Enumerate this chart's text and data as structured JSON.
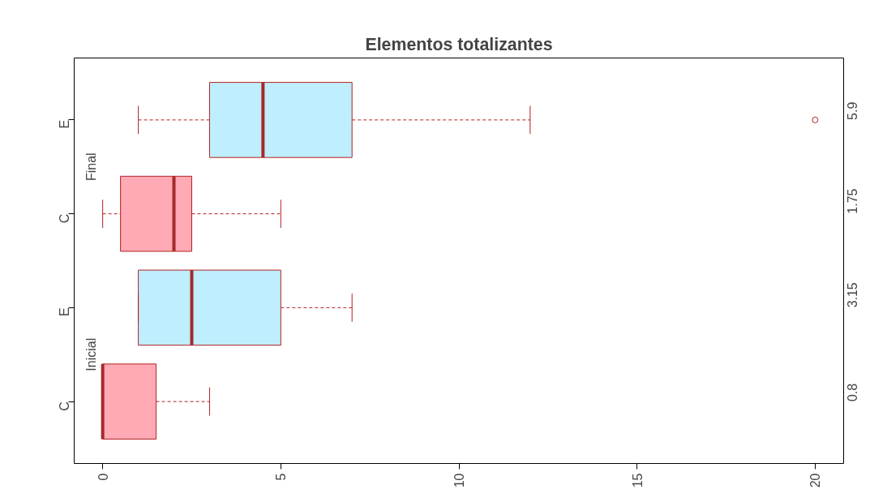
{
  "chart_data": {
    "type": "box",
    "orientation": "horizontal",
    "title": "Elementos totalizantes",
    "categories": [
      "E",
      "C",
      "E",
      "C"
    ],
    "colors": [
      "#bfeeff",
      "#ffaab5",
      "#bfeeff",
      "#ffaab5"
    ],
    "boxes": [
      {
        "low": 1,
        "q1": 3,
        "median": 4.5,
        "q3": 7,
        "high": 12,
        "outliers": [
          20
        ]
      },
      {
        "low": 0,
        "q1": 0.5,
        "median": 2,
        "q3": 2.5,
        "high": 5
      },
      {
        "low": 1,
        "q1": 1,
        "median": 2.5,
        "q3": 5,
        "high": 7
      },
      {
        "low": 0,
        "q1": 0,
        "median": 0,
        "q3": 1.5,
        "high": 3
      }
    ],
    "value_labels": [
      "5.9",
      "1.75",
      "3.15",
      "0.8"
    ],
    "xlim": [
      -0.8,
      20.8
    ],
    "xticks": [
      0,
      5,
      10,
      15,
      20
    ],
    "annotations": [
      "Final",
      "Inicial"
    ],
    "grid": false
  }
}
